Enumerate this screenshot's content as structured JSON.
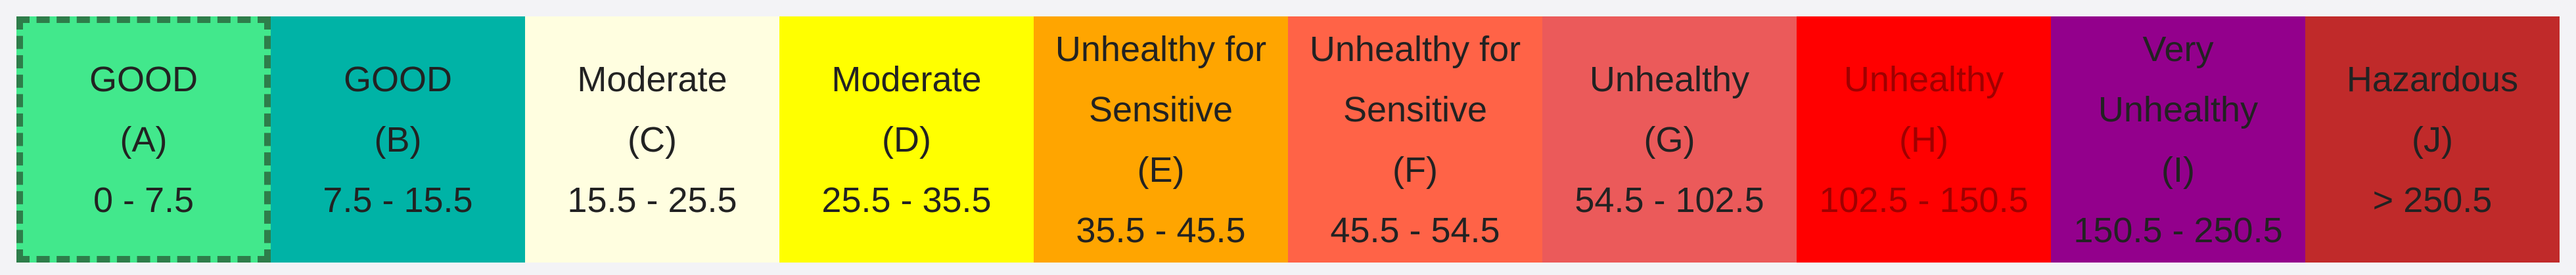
{
  "cells": [
    {
      "label": "GOOD",
      "code": "(A)",
      "range": "0 - 7.5"
    },
    {
      "label": "GOOD",
      "code": "(B)",
      "range": "7.5 - 15.5"
    },
    {
      "label": "Moderate",
      "code": "(C)",
      "range": "15.5 - 25.5"
    },
    {
      "label": "Moderate",
      "code": "(D)",
      "range": "25.5 - 35.5"
    },
    {
      "label": "Unhealthy for Sensitive",
      "code": "(E)",
      "range": "35.5 - 45.5"
    },
    {
      "label": "Unhealthy for Sensitive",
      "code": "(F)",
      "range": "45.5 - 54.5"
    },
    {
      "label": "Unhealthy",
      "code": "(G)",
      "range": "54.5 - 102.5"
    },
    {
      "label": "Unhealthy",
      "code": "(H)",
      "range": "102.5 - 150.5"
    },
    {
      "label": "Very Unhealthy",
      "code": "(I)",
      "range": "150.5 - 250.5"
    },
    {
      "label": "Hazardous",
      "code": "(J)",
      "range": "> 250.5"
    }
  ]
}
